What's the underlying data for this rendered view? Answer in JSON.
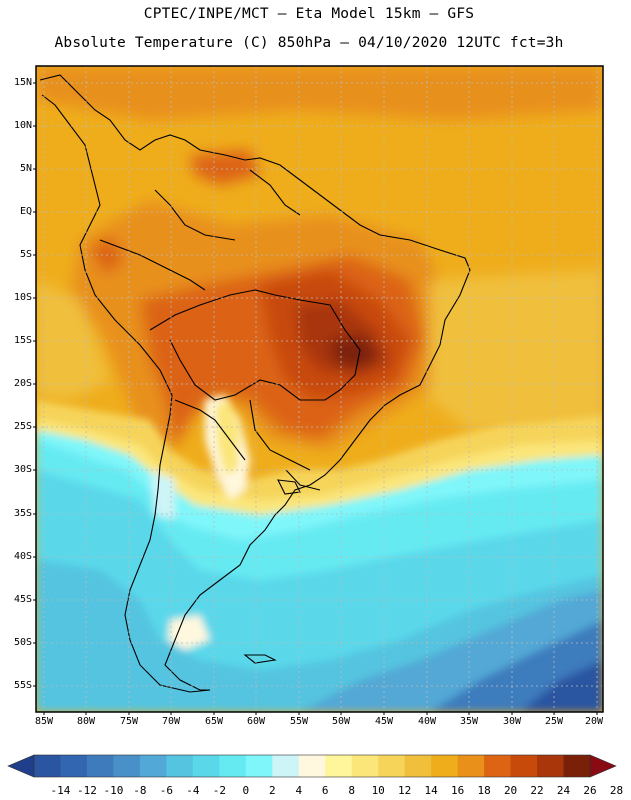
{
  "title": {
    "line1": "CPTEC/INPE/MCT –  Eta Model 15km – GFS",
    "line2": "Absolute Temperature (C) 850hPa – 04/10/2020 12UTC fct=3h"
  },
  "map": {
    "lat_ticks": [
      "15N",
      "10N",
      "5N",
      "EQ",
      "5S",
      "10S",
      "15S",
      "20S",
      "25S",
      "30S",
      "35S",
      "40S",
      "45S",
      "50S",
      "55S"
    ],
    "lon_ticks": [
      "85W",
      "80W",
      "75W",
      "70W",
      "65W",
      "60W",
      "55W",
      "50W",
      "45W",
      "40W",
      "35W",
      "30W",
      "25W",
      "20W"
    ]
  },
  "colorbar": {
    "labels": [
      "-14",
      "-12",
      "-10",
      "-8",
      "-6",
      "-4",
      "-2",
      "0",
      "2",
      "4",
      "6",
      "8",
      "10",
      "12",
      "14",
      "16",
      "18",
      "20",
      "22",
      "24",
      "26",
      "28"
    ],
    "colors": [
      "#1f3f8c",
      "#2a55a0",
      "#3366b0",
      "#3d7bbd",
      "#4a90c8",
      "#52a8d6",
      "#55c4e0",
      "#5ad8ea",
      "#66eaf2",
      "#7ff6fa",
      "#cdf4f7",
      "#fff8de",
      "#fff59a",
      "#fbe67a",
      "#f6d45a",
      "#f0c03c",
      "#efad1c",
      "#e8901a",
      "#dc6412",
      "#c84a0a",
      "#a8360a",
      "#7a2008",
      "#8a0a14"
    ]
  }
}
